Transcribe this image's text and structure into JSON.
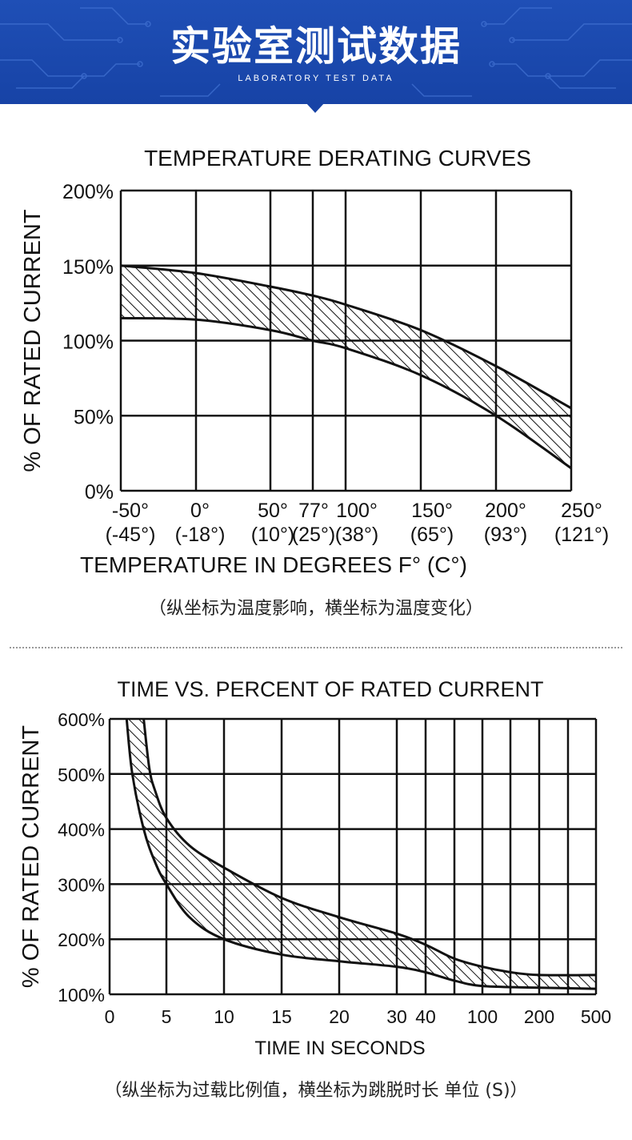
{
  "banner": {
    "title": "实验室测试数据",
    "subtitle": "LABORATORY TEST DATA",
    "color": "#1f4fb6"
  },
  "divider": {
    "style": "dotted"
  },
  "chart_data": [
    {
      "type": "area",
      "title": "TEMPERATURE DERATING CURVES",
      "ylabel": "% OF RATED CURRENT",
      "xlabel": "TEMPERATURE IN DEGREES F° (C°)",
      "note": "（纵坐标为温度影响，横坐标为温度变化）",
      "x_scale": "categorical-grid",
      "x_ticks": [
        {
          "f": "-50°",
          "c": "(-45°)"
        },
        {
          "f": "0°",
          "c": "(-18°)"
        },
        {
          "f": "50°",
          "c": "(10°)"
        },
        {
          "f": "77°",
          "c": "(25°)"
        },
        {
          "f": "100°",
          "c": "(38°)"
        },
        {
          "f": "150°",
          "c": "(65°)"
        },
        {
          "f": "200°",
          "c": "(93°)"
        },
        {
          "f": "250°",
          "c": "(121°)"
        }
      ],
      "x_values": [
        -50,
        0,
        50,
        77,
        100,
        150,
        200,
        250
      ],
      "y_ticks": [
        "200%",
        "150%",
        "100%",
        "50%",
        "0%"
      ],
      "ylim": [
        0,
        200
      ],
      "grid": true,
      "series": [
        {
          "x": [
            -50,
            0,
            50,
            77,
            100,
            150,
            200,
            250
          ],
          "y": [
            150,
            145,
            136,
            130,
            124,
            107,
            83,
            55
          ]
        },
        {
          "x": [
            -50,
            0,
            50,
            77,
            100,
            150,
            200,
            250
          ],
          "y": [
            115,
            114,
            107,
            100,
            95,
            77,
            50,
            15
          ]
        }
      ],
      "fill": "hatched band"
    },
    {
      "type": "area",
      "title": "TIME VS. PERCENT OF RATED CURRENT",
      "ylabel": "% OF RATED CURRENT",
      "xlabel": "TIME IN SECONDS",
      "note": "（纵坐标为过载比例值，横坐标为跳脱时长 单位 (S)）",
      "x_scale": "log",
      "x_ticks": [
        "0",
        "5",
        "10",
        "15",
        "20",
        "30",
        "40",
        "100",
        "200",
        "500"
      ],
      "y_ticks": [
        "600%",
        "500%",
        "400%",
        "300%",
        "200%",
        "100%"
      ],
      "ylim": [
        100,
        600
      ],
      "grid": true,
      "series": [
        {
          "x": [
            3,
            3.5,
            4,
            5,
            7,
            10,
            15,
            20,
            30,
            40,
            70,
            100,
            150,
            200,
            500
          ],
          "y": [
            600,
            510,
            470,
            420,
            370,
            330,
            275,
            240,
            210,
            190,
            165,
            150,
            140,
            135,
            135
          ]
        },
        {
          "x": [
            1.5,
            2,
            3,
            4,
            5,
            7,
            10,
            15,
            20,
            30,
            40,
            70,
            100,
            200,
            500
          ],
          "y": [
            600,
            500,
            400,
            340,
            300,
            240,
            200,
            172,
            160,
            150,
            140,
            125,
            115,
            112,
            110
          ]
        }
      ],
      "fill": "hatched band"
    }
  ]
}
